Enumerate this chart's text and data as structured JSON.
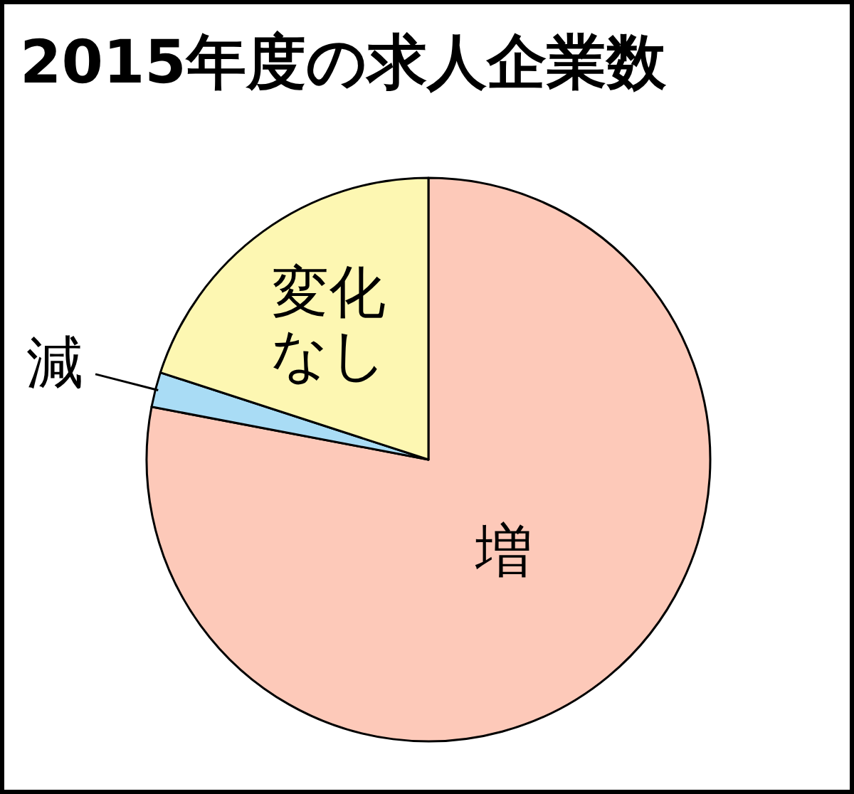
{
  "chart_data": {
    "type": "pie",
    "title": "2015年度の求人企業数",
    "categories": [
      "増",
      "減",
      "変化なし"
    ],
    "values": [
      78,
      2,
      20
    ],
    "colors": [
      "#fdc9b9",
      "#a9dcf5",
      "#fdf7b2"
    ]
  }
}
